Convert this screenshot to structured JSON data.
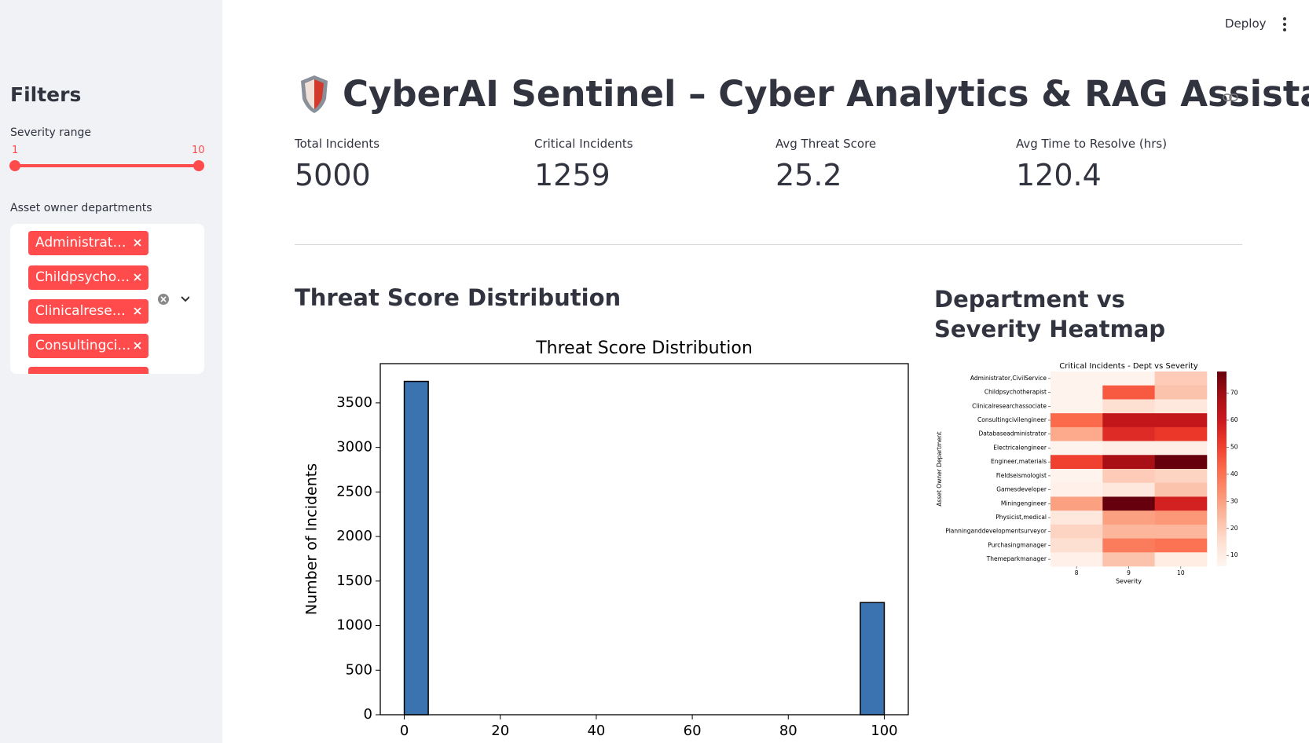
{
  "sidebar": {
    "title": "Filters",
    "severity_slider": {
      "label": "Severity range",
      "min": 1,
      "max": 10
    },
    "departments": {
      "label": "Asset owner departments",
      "selected": [
        "Administrat…",
        "Childpsycho…",
        "Clinicalrese…",
        "Consultingci…"
      ]
    }
  },
  "header": {
    "deploy": "Deploy",
    "title": "CyberAI Sentinel – Cyber Analytics & RAG Assistant"
  },
  "metrics": [
    {
      "label": "Total Incidents",
      "value": 5000
    },
    {
      "label": "Critical Incidents",
      "value": 1259
    },
    {
      "label": "Avg Threat Score",
      "value": 25.2
    },
    {
      "label": "Avg Time to Resolve (hrs)",
      "value": 120.4
    }
  ],
  "sections": [
    "Threat Score Distribution",
    "Department vs Severity Heatmap"
  ],
  "chart_data": [
    {
      "type": "histogram",
      "title": "Threat Score Distribution",
      "ylabel": "Number of Incidents",
      "bins": [
        0,
        5,
        10,
        15,
        20,
        25,
        30,
        35,
        40,
        45,
        50,
        55,
        60,
        65,
        70,
        75,
        80,
        85,
        90,
        95,
        100
      ],
      "counts": [
        3741,
        0,
        0,
        0,
        0,
        0,
        0,
        0,
        0,
        0,
        0,
        0,
        0,
        0,
        0,
        0,
        0,
        0,
        0,
        1259
      ],
      "color": "#3a73b0",
      "xlim": [
        -5,
        105
      ],
      "ylim": [
        0,
        3940
      ],
      "xticks": [
        0,
        20,
        40,
        60,
        80,
        100
      ],
      "yticks": [
        0,
        500,
        1000,
        1500,
        2000,
        2500,
        3000,
        3500
      ]
    },
    {
      "type": "heatmap",
      "title": "Critical Incidents - Dept vs Severity",
      "xlabel": "Severity",
      "ylabel": "Asset Owner Department",
      "x": [
        8,
        9,
        10
      ],
      "y": [
        "Administrator,CivilService",
        "Childpsychotherapist",
        "Clinicalresearchassociate",
        "Consultingcivilengineer",
        "Databaseadministrator",
        "Electricalengineer",
        "Engineer,materials",
        "Fieldseismologist",
        "Gamesdeveloper",
        "Miningengineer",
        "Physicist,medical",
        "Planninganddevelopmentsurveyor",
        "Purchasingmanager",
        "Themeparkmanager"
      ],
      "values": [
        [
          7,
          7,
          20
        ],
        [
          7,
          45,
          22
        ],
        [
          7,
          15,
          12
        ],
        [
          42,
          62,
          62
        ],
        [
          28,
          55,
          52
        ],
        [
          7,
          9,
          9
        ],
        [
          50,
          68,
          78
        ],
        [
          7,
          20,
          18
        ],
        [
          8,
          12,
          22
        ],
        [
          30,
          78,
          58
        ],
        [
          12,
          30,
          32
        ],
        [
          18,
          25,
          25
        ],
        [
          15,
          38,
          40
        ],
        [
          8,
          22,
          10
        ]
      ],
      "colormap": "Reds",
      "clim": [
        6,
        78
      ],
      "colorbar_ticks": [
        10,
        20,
        30,
        40,
        50,
        60,
        70
      ]
    }
  ]
}
